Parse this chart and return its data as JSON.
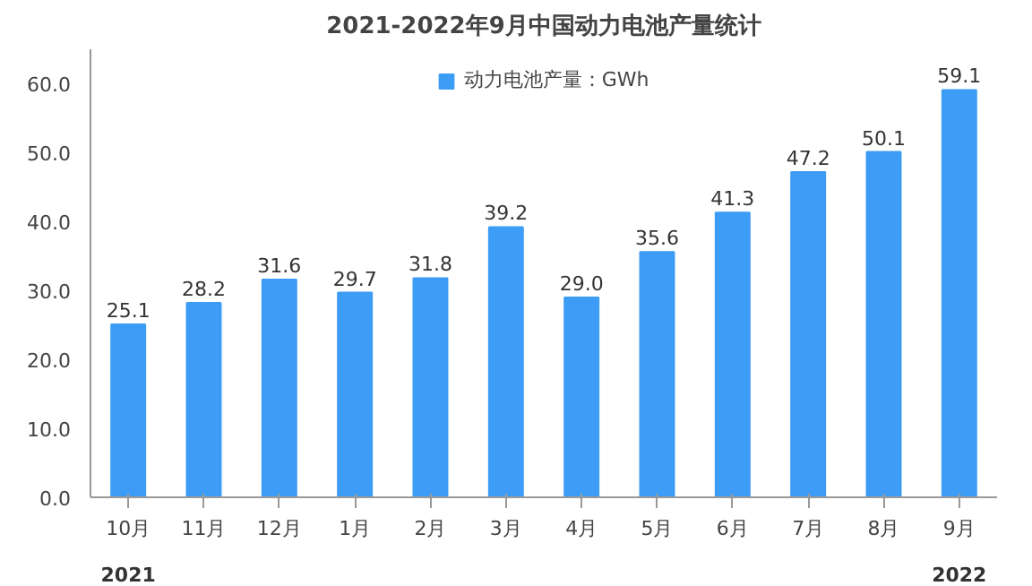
{
  "chart_data": {
    "type": "bar",
    "title": "2021-2022年9月中国动力电池产量统计",
    "categories": [
      "10月",
      "11月",
      "12月",
      "1月",
      "2月",
      "3月",
      "4月",
      "5月",
      "6月",
      "7月",
      "8月",
      "9月"
    ],
    "series": [
      {
        "name": "动力电池产量：GWh",
        "color": "#3d9cf5",
        "values": [
          25.1,
          28.2,
          31.6,
          29.7,
          31.8,
          39.2,
          29.0,
          35.6,
          41.3,
          47.2,
          50.1,
          59.1
        ]
      }
    ],
    "value_labels": [
      "25.1",
      "28.2",
      "31.6",
      "29.7",
      "31.8",
      "39.2",
      "29.0",
      "35.6",
      "41.3",
      "47.2",
      "50.1",
      "59.1"
    ],
    "ylim": [
      0,
      65
    ],
    "yticks": [
      {
        "value": 0,
        "label": "0.0"
      },
      {
        "value": 10,
        "label": "10.0"
      },
      {
        "value": 20,
        "label": "20.0"
      },
      {
        "value": 30,
        "label": "30.0"
      },
      {
        "value": 40,
        "label": "40.0"
      },
      {
        "value": 50,
        "label": "50.0"
      },
      {
        "value": 60,
        "label": "60.0"
      }
    ],
    "annotations": [
      "2021",
      "2022"
    ],
    "legend": "top",
    "grid": false
  }
}
